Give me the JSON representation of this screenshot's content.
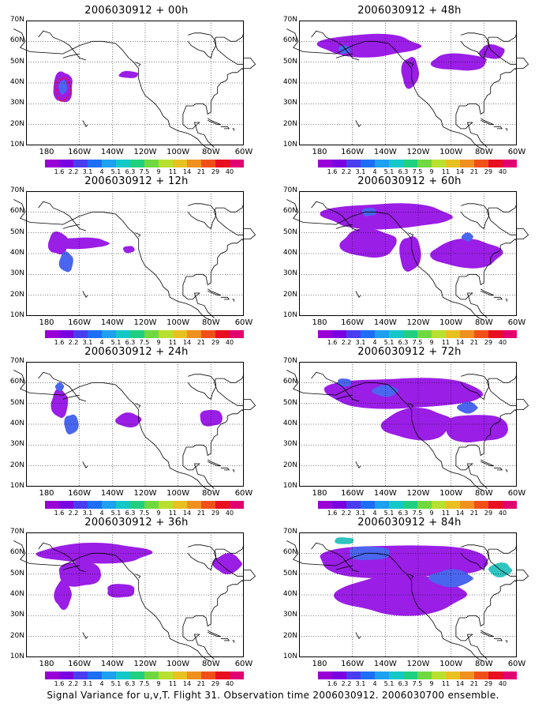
{
  "footer_caption": "Signal Variance for u,v,T. Flight 31. Observation time 2006030912. 2006030700 ensemble.",
  "lat_labels": [
    "70N",
    "60N",
    "50N",
    "40N",
    "30N",
    "20N",
    "10N"
  ],
  "lon_labels": [
    "180",
    "160W",
    "140W",
    "120W",
    "100W",
    "80W",
    "60W"
  ],
  "colorbar": {
    "labels": [
      "1.6",
      "2.2",
      "3.1",
      "4",
      "5.1",
      "6.3",
      "7.5",
      "9",
      "11",
      "14",
      "21",
      "29",
      "40"
    ],
    "colors": [
      "#9900d6",
      "#7a00e0",
      "#4a3df0",
      "#1e6df5",
      "#1ea0f0",
      "#15c8c8",
      "#20d080",
      "#70d840",
      "#b8e030",
      "#e8c020",
      "#f0901e",
      "#f05018",
      "#e81020",
      "#e00070"
    ]
  },
  "palette": {
    "purple": "#9a1ee6",
    "blue": "#4a66ee",
    "lightblue": "#2ea0ee",
    "cyan": "#30c4c0",
    "land": "#000000",
    "grid": "#000000",
    "marker": "#e0104a"
  },
  "panels": [
    {
      "id": "p00",
      "title": "2006030912 + 00h",
      "lead": "00h",
      "coverage": 1
    },
    {
      "id": "p48",
      "title": "2006030912 + 48h",
      "lead": "48h",
      "coverage": 4
    },
    {
      "id": "p12",
      "title": "2006030912 + 12h",
      "lead": "12h",
      "coverage": 2
    },
    {
      "id": "p60",
      "title": "2006030912 + 60h",
      "lead": "60h",
      "coverage": 5
    },
    {
      "id": "p24",
      "title": "2006030912 + 24h",
      "lead": "24h",
      "coverage": 3
    },
    {
      "id": "p72",
      "title": "2006030912 + 72h",
      "lead": "72h",
      "coverage": 6
    },
    {
      "id": "p36",
      "title": "2006030912 + 36h",
      "lead": "36h",
      "coverage": 3
    },
    {
      "id": "p84",
      "title": "2006030912 + 84h",
      "lead": "84h",
      "coverage": 7
    }
  ]
}
